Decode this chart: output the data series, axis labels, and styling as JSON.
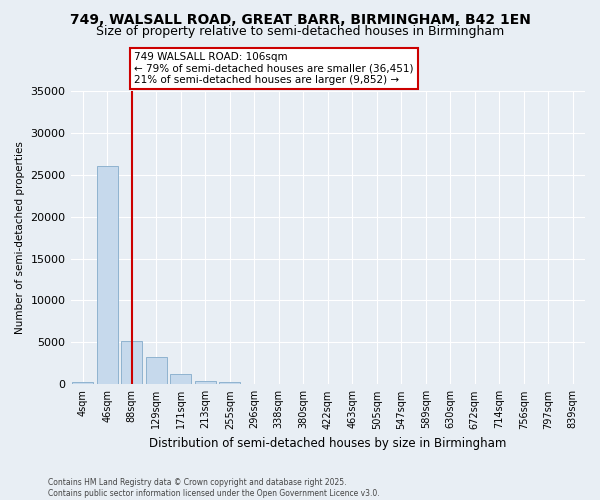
{
  "title": "749, WALSALL ROAD, GREAT BARR, BIRMINGHAM, B42 1EN",
  "subtitle": "Size of property relative to semi-detached houses in Birmingham",
  "xlabel": "Distribution of semi-detached houses by size in Birmingham",
  "ylabel": "Number of semi-detached properties",
  "categories": [
    "4sqm",
    "46sqm",
    "88sqm",
    "129sqm",
    "171sqm",
    "213sqm",
    "255sqm",
    "296sqm",
    "338sqm",
    "380sqm",
    "422sqm",
    "463sqm",
    "505sqm",
    "547sqm",
    "589sqm",
    "630sqm",
    "672sqm",
    "714sqm",
    "756sqm",
    "797sqm",
    "839sqm"
  ],
  "values": [
    300,
    26000,
    5200,
    3200,
    1200,
    380,
    280,
    0,
    0,
    0,
    0,
    0,
    0,
    0,
    0,
    0,
    0,
    0,
    0,
    0,
    0
  ],
  "bar_color": "#c6d9ec",
  "bar_edge_color": "#8fb3d0",
  "vline_x": 2,
  "vline_color": "#cc0000",
  "annotation_line1": "749 WALSALL ROAD: 106sqm",
  "annotation_line2": "← 79% of semi-detached houses are smaller (36,451)",
  "annotation_line3": "21% of semi-detached houses are larger (9,852) →",
  "annotation_box_color": "#ffffff",
  "annotation_box_edge": "#cc0000",
  "ylim": [
    0,
    35000
  ],
  "yticks": [
    0,
    5000,
    10000,
    15000,
    20000,
    25000,
    30000,
    35000
  ],
  "background_color": "#e8eef4",
  "grid_color": "#ffffff",
  "footer": "Contains HM Land Registry data © Crown copyright and database right 2025.\nContains public sector information licensed under the Open Government Licence v3.0.",
  "title_fontsize": 10,
  "subtitle_fontsize": 9,
  "annotation_fontsize": 7.5
}
